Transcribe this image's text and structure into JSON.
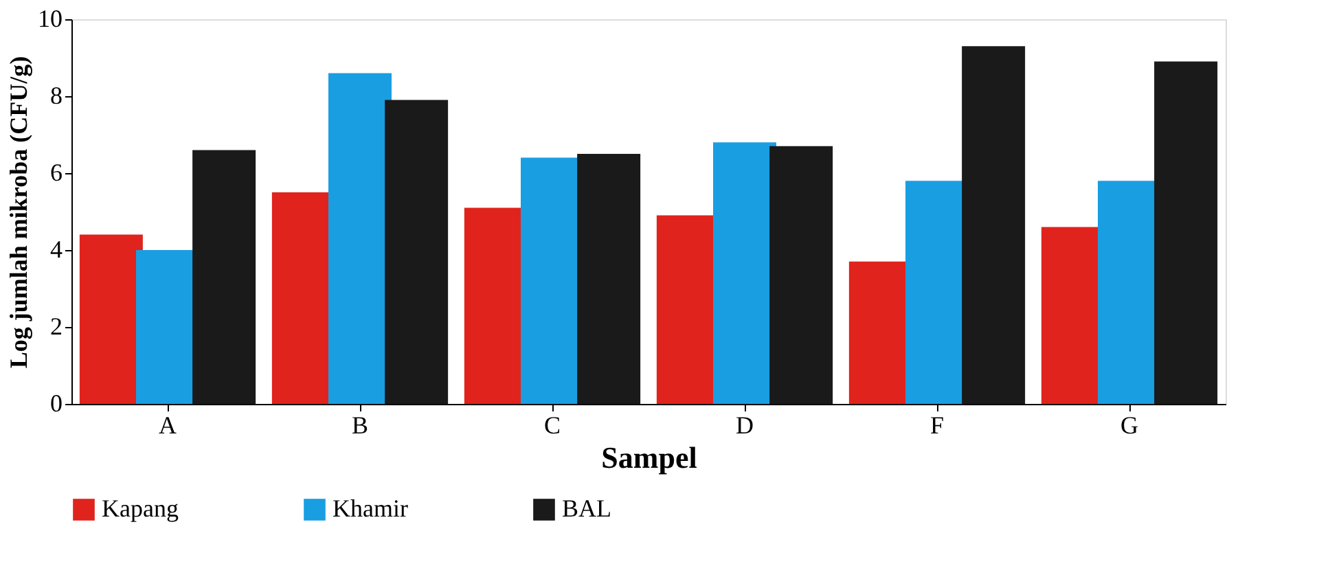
{
  "chart_data": {
    "type": "bar",
    "xlabel": "Sampel",
    "ylabel": "Log jumlah mikroba (CFU/g)",
    "categories": [
      "A",
      "B",
      "C",
      "D",
      "F",
      "G"
    ],
    "series": [
      {
        "name": "Kapang",
        "color": "#e0231c",
        "values": [
          4.4,
          5.5,
          5.1,
          4.9,
          3.7,
          4.6
        ]
      },
      {
        "name": "Khamir",
        "color": "#1a9ee2",
        "values": [
          4.0,
          8.6,
          6.4,
          6.8,
          5.8,
          5.8
        ]
      },
      {
        "name": "BAL",
        "color": "#1a1a1a",
        "values": [
          6.6,
          7.9,
          6.5,
          6.7,
          9.3,
          8.9
        ]
      }
    ],
    "ylim": [
      0,
      10
    ],
    "yticks": [
      0,
      2,
      4,
      6,
      8,
      10
    ],
    "grid": false,
    "legend": "bottom"
  }
}
